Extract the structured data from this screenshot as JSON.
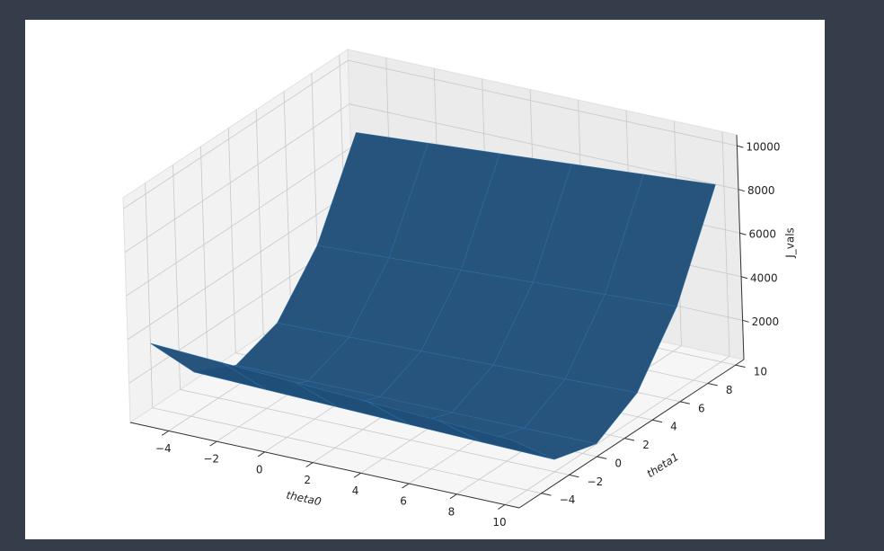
{
  "chart_data": {
    "type": "surface",
    "x_label": "theta0",
    "y_label": "theta1",
    "z_label": "J_vals",
    "x": [
      -5,
      -2,
      1,
      4,
      7,
      10
    ],
    "y": [
      -5,
      -2,
      1,
      4,
      7,
      10
    ],
    "z": [
      [
        3716,
        3549,
        3386,
        3228,
        3073,
        2923
      ],
      [
        1151,
        1065,
        983,
        906,
        832,
        763
      ],
      [
        206,
        201,
        200,
        204,
        211,
        223
      ],
      [
        881,
        957,
        1037,
        1122,
        1210,
        1303
      ],
      [
        3176,
        3333,
        3494,
        3660,
        3829,
        4003
      ],
      [
        7091,
        7329,
        7571,
        7818,
        8068,
        8323
      ]
    ],
    "color": "#1f4e79",
    "xlim": [
      -5.6,
      10.6
    ],
    "ylim": [
      -5.6,
      10.6
    ],
    "zlim": [
      200,
      10500
    ],
    "xticks": [
      {
        "value": -4,
        "label": "−4"
      },
      {
        "value": -2,
        "label": "−2"
      },
      0,
      2,
      4,
      6,
      8,
      10
    ],
    "yticks": [
      {
        "value": -4,
        "label": "−4"
      },
      {
        "value": -2,
        "label": "−2"
      },
      0,
      2,
      4,
      6,
      8,
      10
    ],
    "zticks": [
      2000,
      4000,
      6000,
      8000,
      10000
    ],
    "grid": true
  }
}
